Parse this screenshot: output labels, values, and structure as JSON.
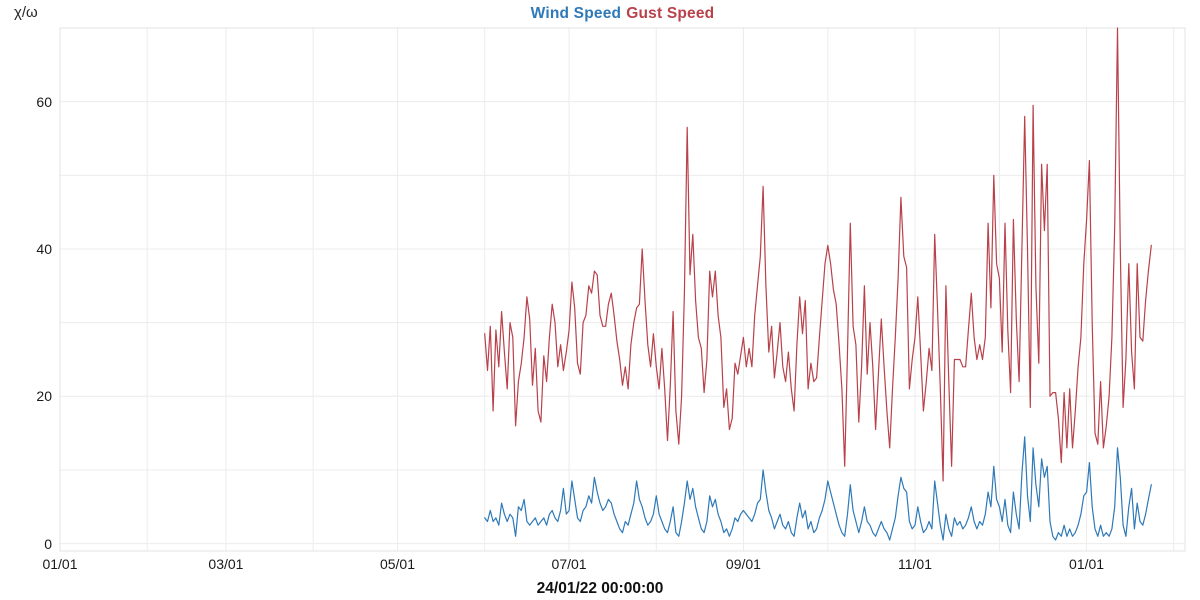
{
  "page": {
    "background": "#ffffff"
  },
  "chart": {
    "legend": [
      {
        "label": "Wind Speed",
        "color": "#2e79b8"
      },
      {
        "label": "Gust Speed",
        "color": "#b8414a"
      }
    ],
    "y_axis_label": "χ/ω",
    "x_axis_label": "24/01/22 00:00:00"
  },
  "chart_data": {
    "type": "line",
    "title": "Wind Speed Gust Speed",
    "ylabel": "χ/ω",
    "xlabel": "24/01/22 00:00:00",
    "legend_position": "top-center",
    "grid": true,
    "grid_color": "#ececec",
    "ylim": [
      -1,
      70
    ],
    "y_gridline_step": 10,
    "y_ticks": [
      {
        "value": 0,
        "label": "0"
      },
      {
        "value": 20,
        "label": "20"
      },
      {
        "value": 40,
        "label": "40"
      },
      {
        "value": 60,
        "label": "60"
      }
    ],
    "x_domain_days": 400,
    "x_domain_note": "days since first axis tick 01/01; data is daily from day 151 (06/01) to day 388 (24/01 next year)",
    "x_month_gridline_days": [
      0,
      31,
      59,
      90,
      120,
      151,
      181,
      212,
      243,
      273,
      304,
      334,
      365,
      396
    ],
    "x_ticks": [
      {
        "day": 0,
        "label": "01/01"
      },
      {
        "day": 59,
        "label": "03/01"
      },
      {
        "day": 120,
        "label": "05/01"
      },
      {
        "day": 181,
        "label": "07/01"
      },
      {
        "day": 243,
        "label": "09/01"
      },
      {
        "day": 304,
        "label": "11/01"
      },
      {
        "day": 365,
        "label": "01/01"
      }
    ],
    "series_start_day": 151,
    "series": [
      {
        "name": "Wind Speed",
        "color": "#2e79b8",
        "values": [
          3.5,
          3,
          4.5,
          3,
          3.5,
          2.5,
          5.5,
          4,
          3,
          4,
          3.5,
          1,
          5,
          4.5,
          6,
          3,
          2.5,
          3,
          3.5,
          2.5,
          3,
          3.5,
          2.5,
          4,
          4.5,
          3.5,
          3,
          4.5,
          7.5,
          4,
          4.5,
          8.5,
          6,
          3.5,
          3,
          4.5,
          5,
          6.5,
          5.5,
          9,
          7,
          5.5,
          4.5,
          5,
          6,
          5.5,
          4,
          3,
          2,
          1.5,
          3,
          2.5,
          4,
          5.5,
          8.5,
          6,
          5,
          3.5,
          2.5,
          3,
          4,
          6.5,
          4,
          3,
          2,
          1.5,
          3,
          5,
          1.5,
          1,
          3,
          5.5,
          8.5,
          6,
          7.5,
          5,
          3.5,
          2,
          1.5,
          3,
          6.5,
          5,
          6,
          4,
          3,
          1.5,
          2,
          1,
          2,
          3.5,
          3,
          4,
          4.5,
          4,
          3.5,
          3,
          4,
          5.5,
          6,
          10,
          7,
          4.5,
          3.5,
          2,
          3,
          4,
          2.5,
          2,
          3,
          1.5,
          1,
          3.5,
          5.5,
          3.5,
          4.5,
          2,
          3,
          1.5,
          2,
          3.5,
          4.5,
          6,
          8.5,
          7,
          5.5,
          4,
          2.5,
          1.5,
          1,
          4,
          8,
          4.5,
          3,
          1.5,
          3,
          5,
          3,
          2.5,
          1.5,
          1,
          2,
          3,
          2,
          1.5,
          0.5,
          2,
          3.5,
          6.5,
          9,
          7.5,
          7,
          3,
          2,
          2.5,
          5,
          3,
          1.5,
          2,
          3,
          2,
          8.5,
          5.5,
          2.5,
          0.5,
          4,
          2,
          1,
          3.5,
          2.5,
          3,
          2,
          2.5,
          3.5,
          5,
          3,
          2,
          3,
          2.5,
          4,
          7,
          5,
          10.5,
          6,
          5,
          3,
          6,
          2.5,
          1.5,
          7,
          4,
          2,
          9.5,
          14.5,
          6.5,
          3,
          13,
          8,
          5,
          11.5,
          9,
          10.5,
          3,
          1,
          0.5,
          1.5,
          1,
          2.5,
          1,
          2,
          1,
          1.5,
          2.5,
          4,
          6.5,
          7,
          11,
          5,
          2,
          1,
          2.5,
          1,
          1.5,
          1,
          2,
          5,
          13,
          9,
          2.5,
          1,
          5,
          7.5,
          2,
          5.5,
          3,
          2.5,
          4,
          6,
          8
        ]
      },
      {
        "name": "Gust Speed",
        "color": "#b8414a",
        "values": [
          28.5,
          23.5,
          29.5,
          18,
          29,
          24,
          31.5,
          26,
          21,
          30,
          28,
          16,
          22,
          24.5,
          28,
          33.5,
          30.5,
          21.5,
          26.5,
          18,
          16.5,
          25.5,
          22,
          28,
          32.5,
          30,
          24,
          27,
          23.5,
          26,
          29,
          35.5,
          32,
          24.5,
          23,
          30,
          31,
          35,
          34,
          37,
          36.5,
          31,
          29.5,
          29.5,
          32.5,
          34,
          31,
          27.5,
          25,
          21.5,
          24,
          21,
          27,
          30,
          32,
          32.5,
          40,
          33,
          27,
          24,
          28.5,
          24,
          21,
          26.5,
          21,
          14,
          21.5,
          31.5,
          18,
          13.5,
          20,
          34,
          56.5,
          36.5,
          42,
          33,
          28,
          26.5,
          20.5,
          25,
          37,
          33.5,
          37,
          31,
          28,
          18.5,
          21,
          15.5,
          17,
          24.5,
          23,
          25.5,
          28,
          24,
          26.5,
          24,
          31,
          35,
          39,
          48.5,
          35,
          26,
          29.5,
          22.5,
          26,
          30,
          24,
          22,
          26,
          21,
          18,
          27,
          33.5,
          28.5,
          33,
          21,
          24.5,
          22,
          22.5,
          28,
          33,
          38,
          40.5,
          38,
          34.5,
          32.5,
          27,
          21,
          10.5,
          26,
          43.5,
          29.5,
          27,
          16.5,
          24,
          35,
          23,
          30,
          24,
          15.5,
          23,
          30.5,
          24,
          18,
          13,
          21,
          28,
          36,
          47,
          39,
          37.5,
          21,
          25,
          28,
          33.5,
          26,
          18,
          22,
          26.5,
          23.5,
          42,
          32,
          21,
          8.5,
          35,
          22,
          10.5,
          25,
          25,
          25,
          24,
          24,
          29,
          34,
          28,
          25,
          27,
          25,
          28,
          43.5,
          32,
          50,
          38,
          36,
          26,
          43.5,
          29,
          20.5,
          44,
          30.5,
          22,
          40,
          58,
          40,
          18.5,
          59.5,
          35,
          24.5,
          51.5,
          42.5,
          51.5,
          20,
          20.5,
          20.5,
          17,
          11,
          20.5,
          13,
          21,
          13,
          18,
          24,
          28,
          38,
          44,
          52,
          30,
          15,
          13.5,
          22,
          13,
          16,
          20,
          28,
          43,
          70,
          40,
          18.5,
          25,
          38,
          26,
          21,
          38,
          28,
          27.5,
          33,
          37,
          40.5
        ]
      }
    ]
  }
}
